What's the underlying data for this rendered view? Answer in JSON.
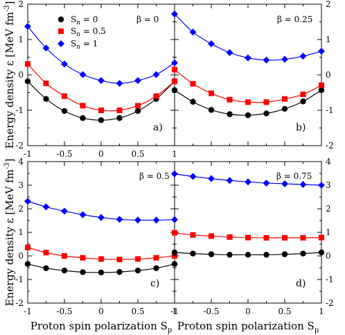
{
  "x_label_left": "Proton spin polarization S",
  "x_label_left_sub": "p",
  "x_label_right": "Proton spin polarization S",
  "x_label_right_sub": "p",
  "y_label_top": "Energy density ε [MeV fm",
  "y_label_top_sup": "-3",
  "y_label_top_close": "]",
  "y_label_bottom": "Energy density ε [MeV fm",
  "y_label_bottom_sup": "-3",
  "y_label_bottom_close": "]",
  "legend": [
    {
      "prefix": "S",
      "sub": "n",
      "suffix": " = 0",
      "color": "#000000",
      "marker": "circle"
    },
    {
      "prefix": "S",
      "sub": "n",
      "suffix": " = 0.5",
      "color": "#ff0000",
      "marker": "square"
    },
    {
      "prefix": "S",
      "sub": "n",
      "suffix": " = 1",
      "color": "#0000ff",
      "marker": "diamond"
    }
  ],
  "chart_data": [
    {
      "type": "scatter",
      "panel": "a)",
      "beta_label": "β = 0",
      "xlim": [
        -1,
        1
      ],
      "ylim": [
        -2,
        2
      ],
      "x_ticks": [
        "-1",
        "-0.5",
        "0",
        "0.5",
        "1"
      ],
      "y_ticks": [
        "-2",
        "-1",
        "0",
        "1",
        "2"
      ],
      "x": [
        -1,
        -0.75,
        -0.5,
        -0.25,
        0,
        0.25,
        0.5,
        0.75,
        1
      ],
      "series": [
        {
          "name": "S_n = 0",
          "color": "#000000",
          "marker": "circle",
          "values": [
            -0.18,
            -0.68,
            -1.02,
            -1.22,
            -1.28,
            -1.22,
            -1.02,
            -0.68,
            -0.18
          ]
        },
        {
          "name": "S_n = 0.5",
          "color": "#ff0000",
          "marker": "square",
          "values": [
            0.31,
            -0.24,
            -0.6,
            -0.87,
            -1.0,
            -1.0,
            -0.87,
            -0.6,
            -0.18
          ]
        },
        {
          "name": "S_n = 1",
          "color": "#0000ff",
          "marker": "diamond",
          "values": [
            1.37,
            0.76,
            0.31,
            0.01,
            -0.16,
            -0.24,
            -0.16,
            0.01,
            0.34
          ]
        }
      ]
    },
    {
      "type": "scatter",
      "panel": "b)",
      "beta_label": "β = 0.25",
      "xlim": [
        -1,
        1
      ],
      "ylim": [
        -2,
        2
      ],
      "x_ticks": [],
      "y_ticks": [
        "-2",
        "-1",
        "0",
        "1",
        "2"
      ],
      "x": [
        -1,
        -0.75,
        -0.5,
        -0.25,
        0,
        0.25,
        0.5,
        0.75,
        1
      ],
      "series": [
        {
          "name": "S_n = 0",
          "color": "#000000",
          "marker": "circle",
          "values": [
            -0.43,
            -0.76,
            -0.99,
            -1.11,
            -1.14,
            -1.09,
            -0.96,
            -0.75,
            -0.43
          ]
        },
        {
          "name": "S_n = 0.5",
          "color": "#ff0000",
          "marker": "square",
          "values": [
            0.15,
            -0.25,
            -0.52,
            -0.7,
            -0.77,
            -0.77,
            -0.68,
            -0.55,
            -0.29
          ]
        },
        {
          "name": "S_n = 1",
          "color": "#0000ff",
          "marker": "diamond",
          "values": [
            1.72,
            1.21,
            0.88,
            0.63,
            0.48,
            0.42,
            0.44,
            0.53,
            0.67
          ]
        }
      ]
    },
    {
      "type": "scatter",
      "panel": "c)",
      "beta_label": "β = 0.5",
      "xlim": [
        -1,
        1
      ],
      "ylim": [
        -2,
        4
      ],
      "x_ticks": [
        "-1",
        "-0.5",
        "0",
        "0.5",
        "1"
      ],
      "y_ticks": [
        "-2",
        "-1",
        "0",
        "1",
        "2",
        "3",
        "4"
      ],
      "x": [
        -1,
        -0.75,
        -0.5,
        -0.25,
        0,
        0.25,
        0.5,
        0.75,
        1
      ],
      "series": [
        {
          "name": "S_n = 0",
          "color": "#000000",
          "marker": "circle",
          "values": [
            -0.34,
            -0.52,
            -0.62,
            -0.69,
            -0.7,
            -0.68,
            -0.62,
            -0.52,
            -0.34
          ]
        },
        {
          "name": "S_n = 0.5",
          "color": "#ff0000",
          "marker": "square",
          "values": [
            0.36,
            0.14,
            0.0,
            -0.08,
            -0.13,
            -0.15,
            -0.13,
            -0.08,
            0.0
          ]
        },
        {
          "name": "S_n = 1",
          "color": "#0000ff",
          "marker": "diamond",
          "values": [
            2.32,
            2.08,
            1.9,
            1.75,
            1.63,
            1.55,
            1.52,
            1.52,
            1.54
          ]
        }
      ]
    },
    {
      "type": "scatter",
      "panel": "d)",
      "beta_label": "β = 0.75",
      "xlim": [
        -1,
        1
      ],
      "ylim": [
        -2,
        4
      ],
      "x_ticks": [
        "-1",
        "-0.5",
        "0",
        "0.5",
        "1"
      ],
      "y_ticks": [
        "-2",
        "-1",
        "0",
        "1",
        "2",
        "3",
        "4"
      ],
      "x": [
        -1,
        -0.75,
        -0.5,
        -0.25,
        0,
        0.25,
        0.5,
        0.75,
        1
      ],
      "series": [
        {
          "name": "S_n = 0",
          "color": "#000000",
          "marker": "circle",
          "values": [
            0.15,
            0.1,
            0.07,
            0.05,
            0.05,
            0.05,
            0.07,
            0.1,
            0.15
          ]
        },
        {
          "name": "S_n = 0.5",
          "color": "#ff0000",
          "marker": "square",
          "values": [
            0.98,
            0.89,
            0.84,
            0.8,
            0.78,
            0.77,
            0.77,
            0.77,
            0.78
          ]
        },
        {
          "name": "S_n = 1",
          "color": "#0000ff",
          "marker": "diamond",
          "values": [
            3.48,
            3.37,
            3.28,
            3.2,
            3.14,
            3.09,
            3.06,
            3.03,
            3.0
          ]
        }
      ]
    }
  ]
}
